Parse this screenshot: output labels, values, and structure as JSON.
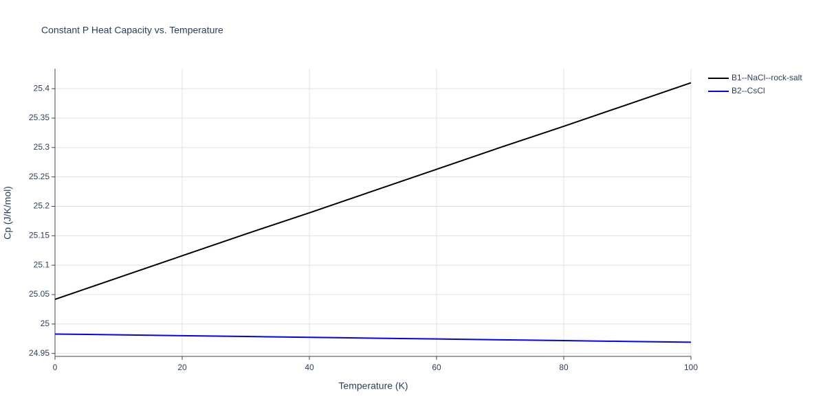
{
  "chart_data": {
    "type": "line",
    "title": "Constant P Heat Capacity vs. Temperature",
    "x_label": "Temperature (K)",
    "y_label": "Cp (J/K/mol)",
    "x": [
      0,
      10,
      20,
      30,
      40,
      50,
      60,
      70,
      80,
      90,
      100
    ],
    "series": [
      {
        "name": "B1--NaCl--rock-salt",
        "color": "#000000",
        "values": [
          25.042,
          25.079,
          25.116,
          25.153,
          25.189,
          25.226,
          25.263,
          25.3,
          25.336,
          25.373,
          25.41
        ]
      },
      {
        "name": "B2--CsCl",
        "color": "#0000ff",
        "values": [
          24.983,
          24.9816,
          24.9802,
          24.9788,
          24.9774,
          24.976,
          24.9746,
          24.9732,
          24.9718,
          24.9704,
          24.969
        ]
      }
    ],
    "xlim": [
      0,
      100
    ],
    "xticks": [
      0,
      20,
      40,
      60,
      80,
      100
    ],
    "ylim": [
      24.945,
      25.434
    ],
    "yticks": [
      24.95,
      25,
      25.05,
      25.1,
      25.15,
      25.2,
      25.25,
      25.3,
      25.35,
      25.4
    ],
    "grid": true,
    "legend": "top-right"
  }
}
